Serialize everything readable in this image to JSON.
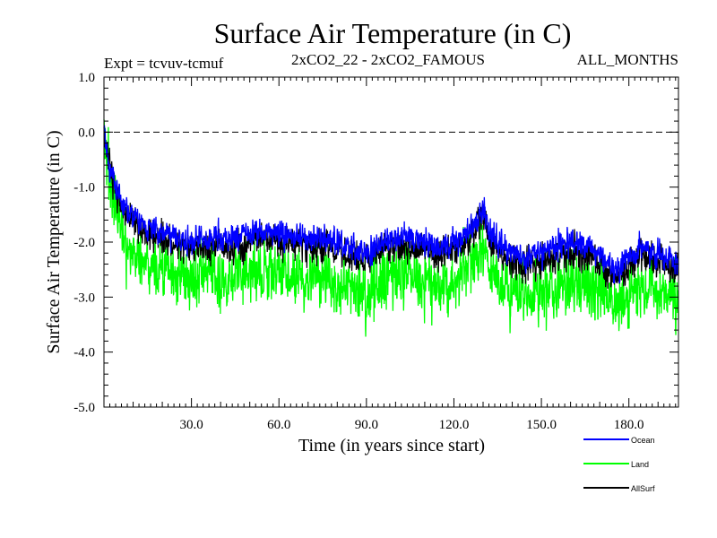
{
  "chart_data": {
    "type": "line",
    "title": "Surface Air Temperature (in C)",
    "subtitle_left": "Expt = tcvuv-tcmuf",
    "subtitle_center": "2xCO2_22 - 2xCO2_FAMOUS",
    "subtitle_right": "ALL_MONTHS",
    "xlabel": "Time (in years since start)",
    "ylabel": "Surface Air Temperature (in C)",
    "xlim": [
      0,
      197
    ],
    "ylim": [
      -5.0,
      1.0
    ],
    "x_ticks": [
      30,
      60,
      90,
      120,
      150,
      180
    ],
    "x_tick_labels": [
      "30.0",
      "60.0",
      "90.0",
      "120.0",
      "150.0",
      "180.0"
    ],
    "y_ticks": [
      1.0,
      0.0,
      -1.0,
      -2.0,
      -3.0,
      -4.0,
      -5.0
    ],
    "y_tick_labels": [
      "1.0",
      "0.0",
      "-1.0",
      "-2.0",
      "-3.0",
      "-4.0",
      "-5.0"
    ],
    "reference_line": {
      "y": 0.0,
      "style": "dashed"
    },
    "grid": false,
    "legend_position": "bottom-right",
    "series": [
      {
        "name": "Ocean",
        "color": "#0000ff",
        "x": [
          0,
          2,
          4,
          6,
          8,
          10,
          15,
          20,
          25,
          30,
          35,
          40,
          45,
          50,
          55,
          60,
          65,
          70,
          75,
          80,
          85,
          90,
          95,
          100,
          105,
          110,
          115,
          120,
          125,
          130,
          132,
          135,
          140,
          145,
          150,
          155,
          160,
          165,
          170,
          175,
          180,
          185,
          190,
          195,
          197
        ],
        "values": [
          0.0,
          -0.6,
          -1.0,
          -1.2,
          -1.4,
          -1.5,
          -1.7,
          -1.8,
          -1.9,
          -2.0,
          -1.9,
          -1.95,
          -1.9,
          -1.85,
          -1.8,
          -1.85,
          -1.9,
          -1.9,
          -1.95,
          -2.0,
          -2.1,
          -2.2,
          -2.0,
          -1.95,
          -1.9,
          -2.0,
          -2.1,
          -2.0,
          -1.8,
          -1.4,
          -1.8,
          -2.0,
          -2.2,
          -2.3,
          -2.2,
          -2.1,
          -2.0,
          -2.1,
          -2.2,
          -2.5,
          -2.3,
          -2.1,
          -2.2,
          -2.3,
          -2.4
        ],
        "noise": 0.17
      },
      {
        "name": "Land",
        "color": "#00ff00",
        "x": [
          0,
          2,
          4,
          6,
          8,
          10,
          15,
          20,
          25,
          30,
          35,
          40,
          45,
          50,
          55,
          60,
          65,
          70,
          75,
          80,
          85,
          90,
          95,
          100,
          105,
          110,
          115,
          120,
          125,
          130,
          132,
          135,
          140,
          145,
          150,
          155,
          160,
          165,
          170,
          175,
          180,
          185,
          190,
          195,
          197
        ],
        "values": [
          0.0,
          -0.9,
          -1.4,
          -1.8,
          -2.0,
          -2.2,
          -2.4,
          -2.5,
          -2.6,
          -2.7,
          -2.6,
          -2.65,
          -2.6,
          -2.55,
          -2.5,
          -2.55,
          -2.6,
          -2.6,
          -2.65,
          -2.7,
          -2.8,
          -2.9,
          -2.7,
          -2.65,
          -2.6,
          -2.7,
          -2.8,
          -2.7,
          -2.5,
          -2.1,
          -2.5,
          -2.7,
          -2.9,
          -3.0,
          -2.9,
          -2.8,
          -2.7,
          -2.8,
          -2.9,
          -3.2,
          -3.0,
          -2.8,
          -2.9,
          -3.0,
          -3.1
        ],
        "noise": 0.38
      },
      {
        "name": "AllSurf",
        "color": "#000000",
        "x": [
          0,
          2,
          4,
          6,
          8,
          10,
          15,
          20,
          25,
          30,
          35,
          40,
          45,
          50,
          55,
          60,
          65,
          70,
          75,
          80,
          85,
          90,
          95,
          100,
          105,
          110,
          115,
          120,
          125,
          130,
          132,
          135,
          140,
          145,
          150,
          155,
          160,
          165,
          170,
          175,
          180,
          185,
          190,
          195,
          197
        ],
        "values": [
          0.0,
          -0.7,
          -1.1,
          -1.35,
          -1.55,
          -1.65,
          -1.85,
          -1.95,
          -2.05,
          -2.15,
          -2.05,
          -2.1,
          -2.05,
          -2.0,
          -1.95,
          -2.0,
          -2.05,
          -2.05,
          -2.1,
          -2.15,
          -2.25,
          -2.35,
          -2.15,
          -2.1,
          -2.05,
          -2.15,
          -2.25,
          -2.15,
          -1.95,
          -1.55,
          -1.95,
          -2.15,
          -2.35,
          -2.45,
          -2.35,
          -2.25,
          -2.15,
          -2.25,
          -2.35,
          -2.65,
          -2.45,
          -2.25,
          -2.35,
          -2.45,
          -2.55
        ],
        "noise": 0.2
      }
    ]
  }
}
